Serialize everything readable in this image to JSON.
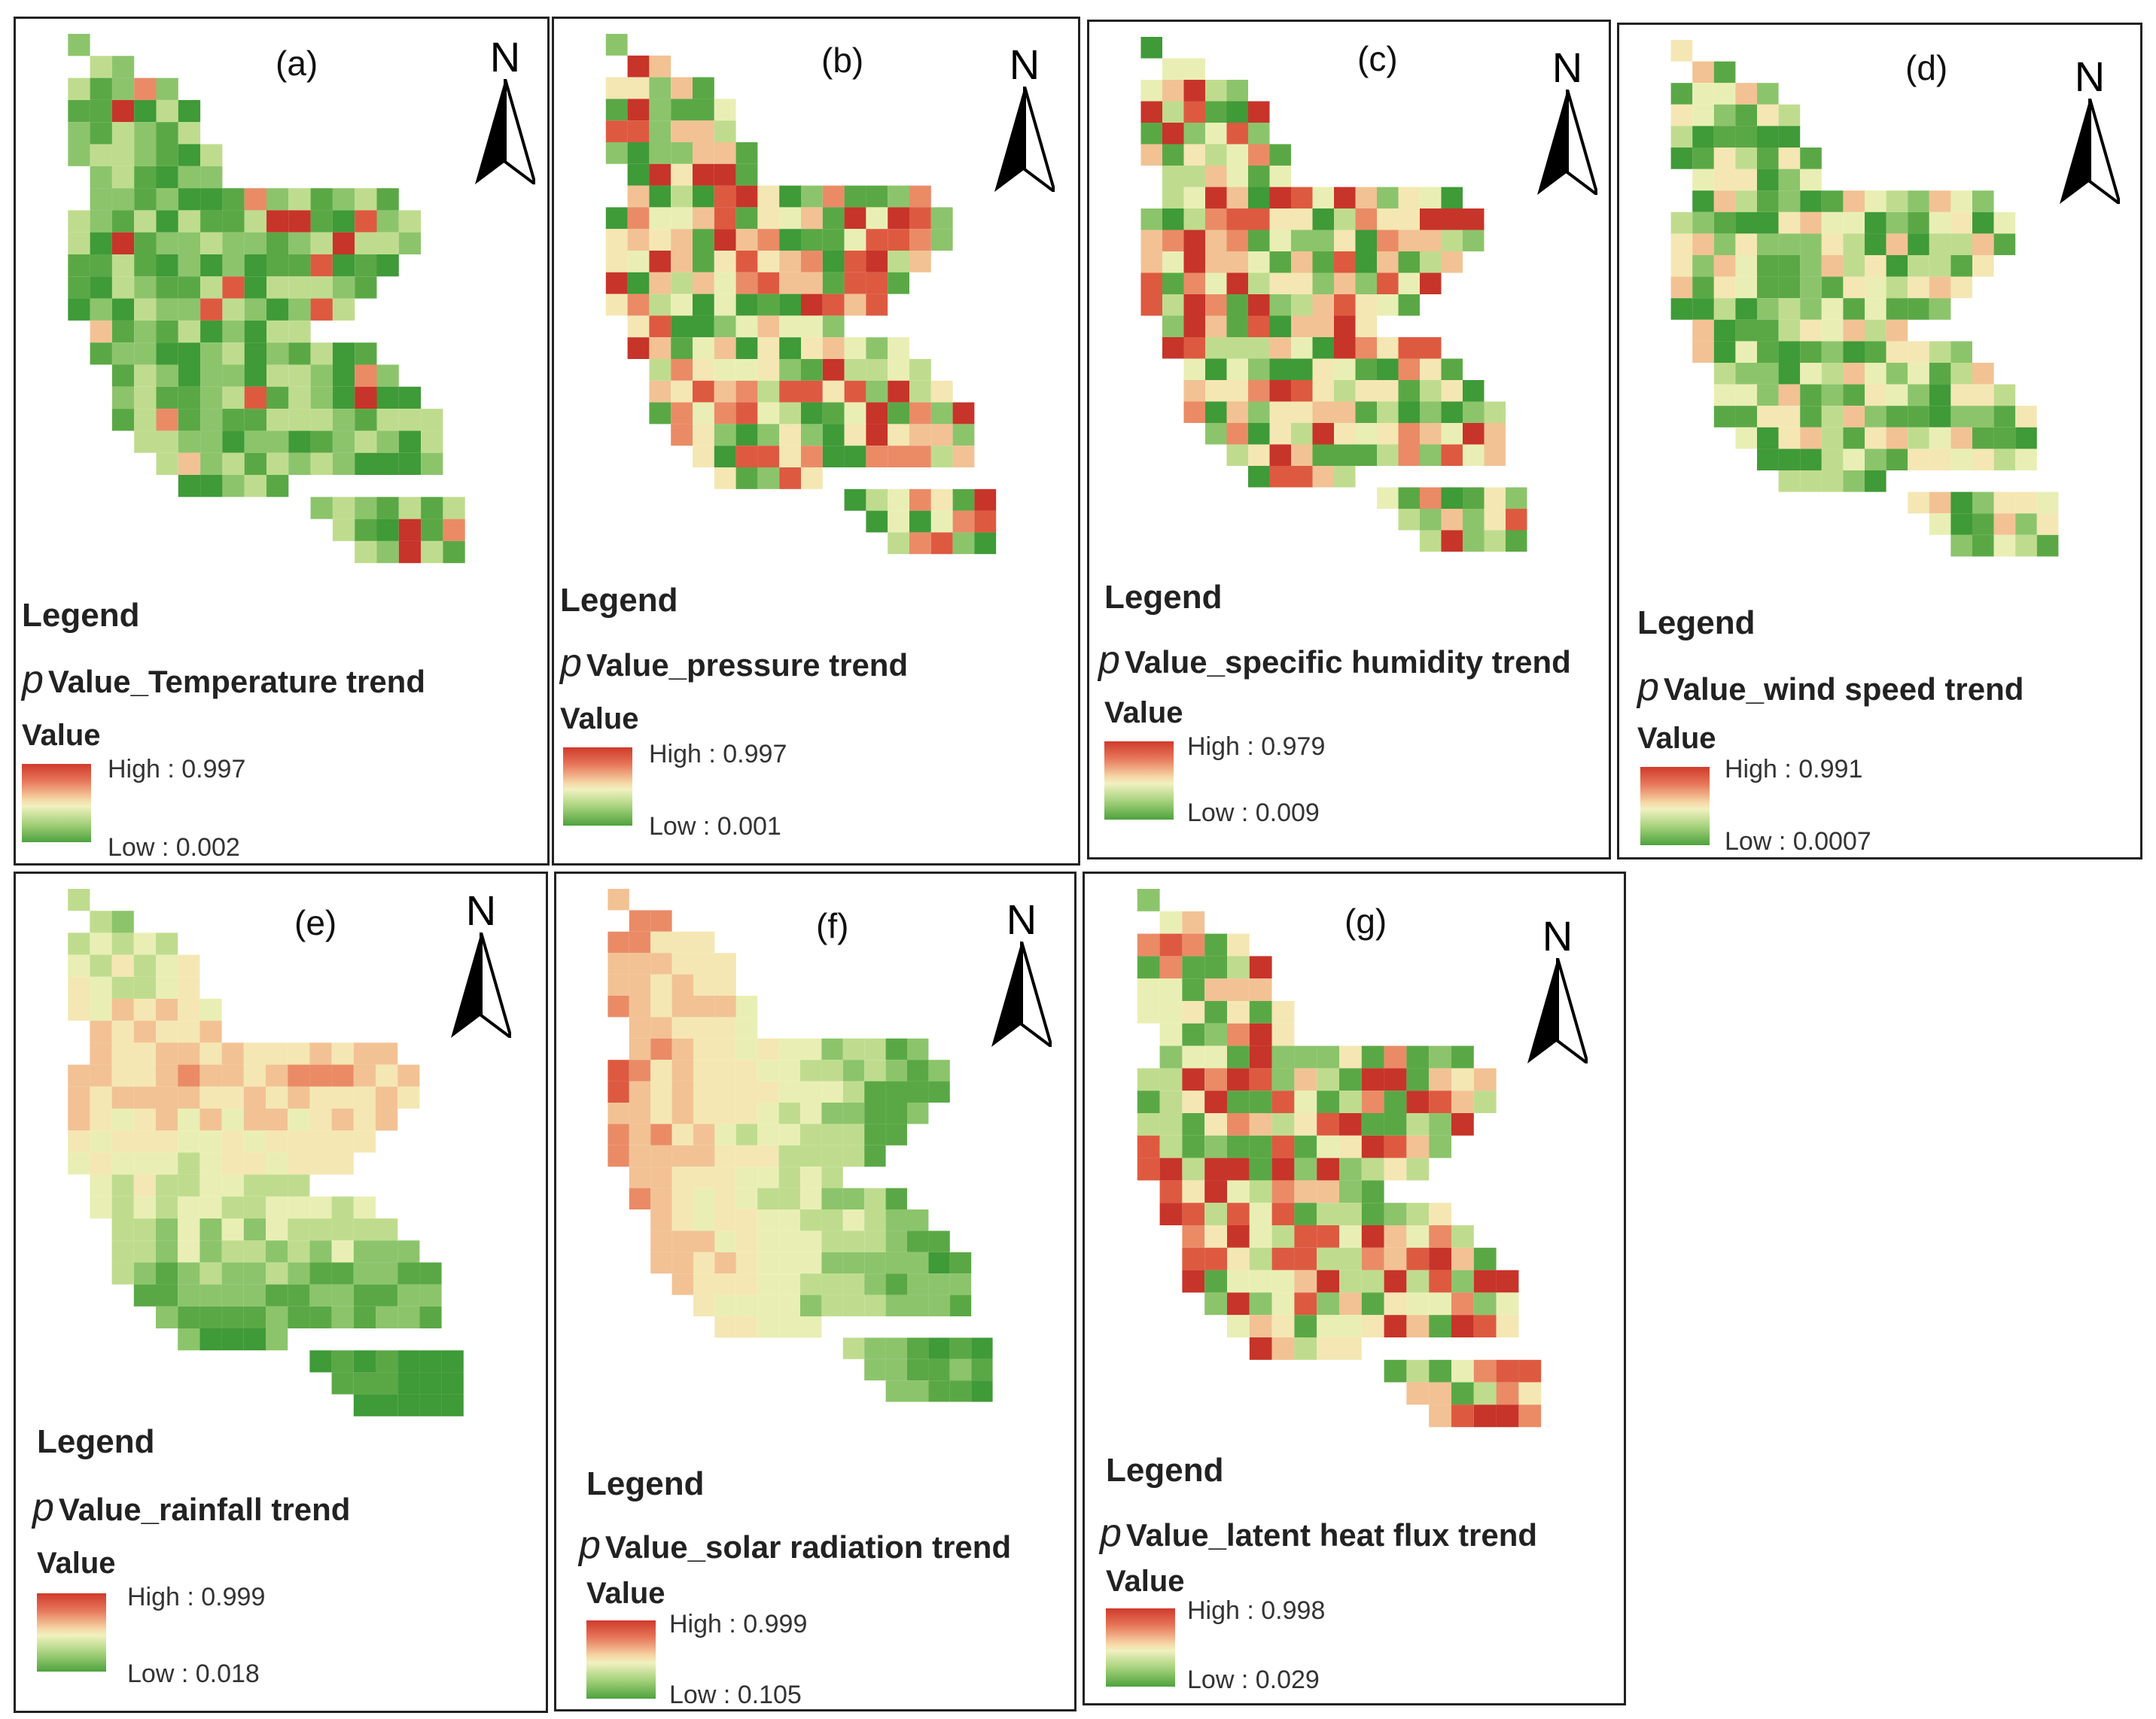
{
  "figure": {
    "north_symbol": "N",
    "legend_title": "Legend",
    "value_title": "Value",
    "p_symbol": "p",
    "colors": {
      "high": "#cf3a2c",
      "mid": "#f3efbd",
      "low": "#4ea23e"
    }
  },
  "panels": [
    {
      "label": "(a)",
      "variable": "Value_Temperature trend",
      "high": "High : 0.997",
      "low": "Low : 0.002",
      "dominant": "low"
    },
    {
      "label": "(b)",
      "variable": "Value_pressure trend",
      "high": "High : 0.997",
      "low": "Low : 0.001",
      "dominant": "mixed"
    },
    {
      "label": "(c)",
      "variable": "Value_specific humidity trend",
      "high": "High : 0.979",
      "low": "Low : 0.009",
      "dominant": "mixed"
    },
    {
      "label": "(d)",
      "variable": "Value_wind speed trend",
      "high": "High : 0.991",
      "low": "Low : 0.0007",
      "dominant": "mixed-low"
    },
    {
      "label": "(e)",
      "variable": "Value_rainfall trend",
      "high": "High : 0.999",
      "low": "Low : 0.018",
      "dominant": "smooth-high"
    },
    {
      "label": "(f)",
      "variable": "Value_solar radiation trend",
      "high": "High : 0.999",
      "low": "Low : 0.105",
      "dominant": "smooth-high-west"
    },
    {
      "label": "(g)",
      "variable": "Value_latent heat flux trend",
      "high": "High : 0.998",
      "low": "Low : 0.029",
      "dominant": "mixed-high"
    }
  ]
}
